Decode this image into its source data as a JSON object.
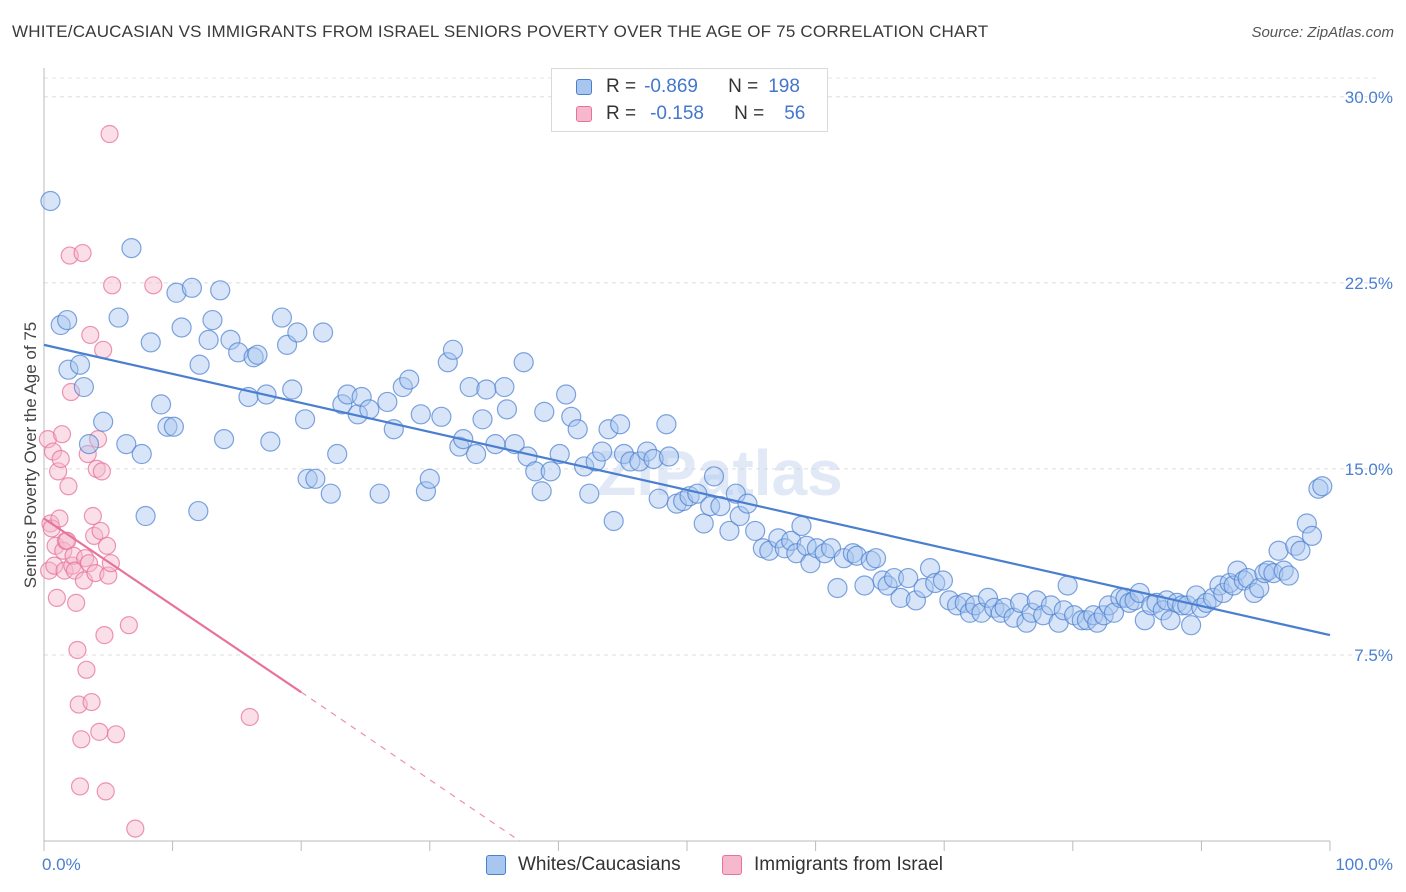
{
  "title": "WHITE/CAUCASIAN VS IMMIGRANTS FROM ISRAEL SENIORS POVERTY OVER THE AGE OF 75 CORRELATION CHART",
  "source": "Source: ZipAtlas.com",
  "watermark": "ZIPatlas",
  "legend": {
    "rows": [
      {
        "r_label": "R =",
        "r_value": "-0.869",
        "n_label": "N =",
        "n_value": "198"
      },
      {
        "r_label": "R =",
        "r_value": "-0.158",
        "n_label": "N =",
        "n_value": "56"
      }
    ]
  },
  "colors": {
    "blue": "#4a7fd0",
    "blue_fill": "#a9c6ef",
    "pink": "#e8729b",
    "pink_fill": "#f5b8cc"
  },
  "chart_data": {
    "type": "scatter",
    "ylabel": "Seniors Poverty Over the Age of 75",
    "xlabel": "",
    "x_tick_labels": [
      "0.0%",
      "100.0%"
    ],
    "y_tick_labels": [
      "7.5%",
      "15.0%",
      "22.5%",
      "30.0%"
    ],
    "xlim": [
      0,
      100
    ],
    "ylim": [
      0,
      31
    ],
    "y_ticks": [
      7.5,
      15.0,
      22.5,
      30.0
    ],
    "grid": "horizontal dashed",
    "legend_position": "top-center",
    "series": [
      {
        "name": "Whites/Caucasians",
        "color": "#4a7fd0",
        "trend": {
          "x": [
            0,
            100
          ],
          "y": [
            20.0,
            8.3
          ]
        },
        "points": [
          [
            0.5,
            25.8
          ],
          [
            1.3,
            20.8
          ],
          [
            1.8,
            21.0
          ],
          [
            1.9,
            19.0
          ],
          [
            2.8,
            19.2
          ],
          [
            3.1,
            18.3
          ],
          [
            3.5,
            16.0
          ],
          [
            4.6,
            16.9
          ],
          [
            5.8,
            21.1
          ],
          [
            6.4,
            16.0
          ],
          [
            6.8,
            23.9
          ],
          [
            7.6,
            15.6
          ],
          [
            7.9,
            13.1
          ],
          [
            8.3,
            20.1
          ],
          [
            9.1,
            17.6
          ],
          [
            9.6,
            16.7
          ],
          [
            10.1,
            16.7
          ],
          [
            10.3,
            22.1
          ],
          [
            10.7,
            20.7
          ],
          [
            11.5,
            22.3
          ],
          [
            12.0,
            13.3
          ],
          [
            12.1,
            19.2
          ],
          [
            12.8,
            20.2
          ],
          [
            13.1,
            21.0
          ],
          [
            13.7,
            22.2
          ],
          [
            14.0,
            16.2
          ],
          [
            14.5,
            20.2
          ],
          [
            15.1,
            19.7
          ],
          [
            15.9,
            17.9
          ],
          [
            16.3,
            19.5
          ],
          [
            16.6,
            19.6
          ],
          [
            17.3,
            18.0
          ],
          [
            17.6,
            16.1
          ],
          [
            18.5,
            21.1
          ],
          [
            18.9,
            20.0
          ],
          [
            19.3,
            18.2
          ],
          [
            19.7,
            20.5
          ],
          [
            20.3,
            17.0
          ],
          [
            20.5,
            14.6
          ],
          [
            21.1,
            14.6
          ],
          [
            21.7,
            20.5
          ],
          [
            22.3,
            14.0
          ],
          [
            22.8,
            15.6
          ],
          [
            23.2,
            17.6
          ],
          [
            23.6,
            18.0
          ],
          [
            24.4,
            17.2
          ],
          [
            24.7,
            17.9
          ],
          [
            25.3,
            17.4
          ],
          [
            26.1,
            14.0
          ],
          [
            26.7,
            17.7
          ],
          [
            27.2,
            16.6
          ],
          [
            27.9,
            18.3
          ],
          [
            28.4,
            18.6
          ],
          [
            29.3,
            17.2
          ],
          [
            29.7,
            14.1
          ],
          [
            30.0,
            14.6
          ],
          [
            30.9,
            17.1
          ],
          [
            31.4,
            19.3
          ],
          [
            31.8,
            19.8
          ],
          [
            32.3,
            15.9
          ],
          [
            32.6,
            16.2
          ],
          [
            33.1,
            18.3
          ],
          [
            33.6,
            15.6
          ],
          [
            34.1,
            17.0
          ],
          [
            34.4,
            18.2
          ],
          [
            35.1,
            16.0
          ],
          [
            35.8,
            18.3
          ],
          [
            36.0,
            17.4
          ],
          [
            36.6,
            16.0
          ],
          [
            37.3,
            19.3
          ],
          [
            37.6,
            15.5
          ],
          [
            38.2,
            14.9
          ],
          [
            38.7,
            14.1
          ],
          [
            38.9,
            17.3
          ],
          [
            39.4,
            14.9
          ],
          [
            40.1,
            15.6
          ],
          [
            40.6,
            18.0
          ],
          [
            41.0,
            17.1
          ],
          [
            41.5,
            16.6
          ],
          [
            42.0,
            15.1
          ],
          [
            42.4,
            14.0
          ],
          [
            42.9,
            15.3
          ],
          [
            43.4,
            15.7
          ],
          [
            43.9,
            16.6
          ],
          [
            44.3,
            12.9
          ],
          [
            44.8,
            16.8
          ],
          [
            45.1,
            15.6
          ],
          [
            45.6,
            15.3
          ],
          [
            46.3,
            15.3
          ],
          [
            46.9,
            15.7
          ],
          [
            47.4,
            15.4
          ],
          [
            47.8,
            13.8
          ],
          [
            48.4,
            16.8
          ],
          [
            48.6,
            15.5
          ],
          [
            49.2,
            13.6
          ],
          [
            49.7,
            13.7
          ],
          [
            50.2,
            13.9
          ],
          [
            50.8,
            14.0
          ],
          [
            51.3,
            12.8
          ],
          [
            51.8,
            13.5
          ],
          [
            52.1,
            14.7
          ],
          [
            52.6,
            13.5
          ],
          [
            53.3,
            12.5
          ],
          [
            53.8,
            14.0
          ],
          [
            54.1,
            13.1
          ],
          [
            54.7,
            13.6
          ],
          [
            55.3,
            12.5
          ],
          [
            55.9,
            11.8
          ],
          [
            56.4,
            11.7
          ],
          [
            57.1,
            12.2
          ],
          [
            57.6,
            11.8
          ],
          [
            58.1,
            12.1
          ],
          [
            58.5,
            11.6
          ],
          [
            58.9,
            12.7
          ],
          [
            59.3,
            11.9
          ],
          [
            59.6,
            11.2
          ],
          [
            60.1,
            11.8
          ],
          [
            60.7,
            11.6
          ],
          [
            61.2,
            11.8
          ],
          [
            61.7,
            10.2
          ],
          [
            62.2,
            11.4
          ],
          [
            62.9,
            11.6
          ],
          [
            63.2,
            11.5
          ],
          [
            63.8,
            10.3
          ],
          [
            64.3,
            11.3
          ],
          [
            64.7,
            11.4
          ],
          [
            65.2,
            10.5
          ],
          [
            65.6,
            10.3
          ],
          [
            66.1,
            10.6
          ],
          [
            66.6,
            9.8
          ],
          [
            67.2,
            10.6
          ],
          [
            67.8,
            9.7
          ],
          [
            68.4,
            10.2
          ],
          [
            68.9,
            11.0
          ],
          [
            69.3,
            10.4
          ],
          [
            69.9,
            10.5
          ],
          [
            70.4,
            9.7
          ],
          [
            71.0,
            9.5
          ],
          [
            71.6,
            9.6
          ],
          [
            72.0,
            9.2
          ],
          [
            72.4,
            9.5
          ],
          [
            72.9,
            9.2
          ],
          [
            73.4,
            9.8
          ],
          [
            73.9,
            9.4
          ],
          [
            74.4,
            9.2
          ],
          [
            74.7,
            9.4
          ],
          [
            75.4,
            9.0
          ],
          [
            75.9,
            9.6
          ],
          [
            76.4,
            8.8
          ],
          [
            76.8,
            9.2
          ],
          [
            77.2,
            9.7
          ],
          [
            77.7,
            9.1
          ],
          [
            78.3,
            9.5
          ],
          [
            78.9,
            8.8
          ],
          [
            79.3,
            9.3
          ],
          [
            79.6,
            10.3
          ],
          [
            80.1,
            9.1
          ],
          [
            80.7,
            8.9
          ],
          [
            81.1,
            8.9
          ],
          [
            81.6,
            9.1
          ],
          [
            81.9,
            8.8
          ],
          [
            82.4,
            9.1
          ],
          [
            82.8,
            9.5
          ],
          [
            83.2,
            9.2
          ],
          [
            83.7,
            9.8
          ],
          [
            84.1,
            9.8
          ],
          [
            84.4,
            9.6
          ],
          [
            84.8,
            9.7
          ],
          [
            85.2,
            10.0
          ],
          [
            85.6,
            8.9
          ],
          [
            86.1,
            9.5
          ],
          [
            86.5,
            9.6
          ],
          [
            87.0,
            9.3
          ],
          [
            87.3,
            9.7
          ],
          [
            87.6,
            8.9
          ],
          [
            88.1,
            9.6
          ],
          [
            88.5,
            9.5
          ],
          [
            88.9,
            9.5
          ],
          [
            89.2,
            8.7
          ],
          [
            89.6,
            9.9
          ],
          [
            90.0,
            9.4
          ],
          [
            90.4,
            9.6
          ],
          [
            90.9,
            9.8
          ],
          [
            91.4,
            10.3
          ],
          [
            91.7,
            10.0
          ],
          [
            92.2,
            10.4
          ],
          [
            92.5,
            10.3
          ],
          [
            92.8,
            10.9
          ],
          [
            93.3,
            10.5
          ],
          [
            93.6,
            10.6
          ],
          [
            94.1,
            10.0
          ],
          [
            94.5,
            10.2
          ],
          [
            94.9,
            10.8
          ],
          [
            95.2,
            10.9
          ],
          [
            95.6,
            10.8
          ],
          [
            96.0,
            11.7
          ],
          [
            96.4,
            10.9
          ],
          [
            96.8,
            10.7
          ],
          [
            97.3,
            11.9
          ],
          [
            97.7,
            11.7
          ],
          [
            98.2,
            12.8
          ],
          [
            98.6,
            12.3
          ],
          [
            99.1,
            14.2
          ],
          [
            99.4,
            14.3
          ]
        ]
      },
      {
        "name": "Immigrants from Israel",
        "color": "#e8729b",
        "trend": {
          "x": [
            0,
            20
          ],
          "y": [
            13.0,
            6.0
          ]
        },
        "trend_extension": {
          "x": [
            20,
            37
          ],
          "y": [
            6.0,
            0.0
          ]
        },
        "points": [
          [
            0.3,
            16.2
          ],
          [
            0.4,
            10.9
          ],
          [
            0.5,
            12.8
          ],
          [
            0.6,
            12.6
          ],
          [
            0.7,
            15.7
          ],
          [
            0.8,
            11.1
          ],
          [
            0.9,
            11.9
          ],
          [
            1.0,
            9.8
          ],
          [
            1.1,
            14.9
          ],
          [
            1.2,
            13.0
          ],
          [
            1.3,
            15.4
          ],
          [
            1.4,
            16.4
          ],
          [
            1.5,
            11.7
          ],
          [
            1.6,
            10.9
          ],
          [
            1.7,
            12.1
          ],
          [
            1.8,
            12.1
          ],
          [
            1.9,
            14.3
          ],
          [
            2.0,
            23.6
          ],
          [
            2.1,
            18.1
          ],
          [
            2.2,
            11.1
          ],
          [
            2.3,
            11.5
          ],
          [
            2.4,
            10.9
          ],
          [
            2.5,
            9.6
          ],
          [
            2.6,
            7.7
          ],
          [
            2.7,
            5.5
          ],
          [
            2.8,
            2.2
          ],
          [
            2.9,
            4.1
          ],
          [
            3.0,
            23.7
          ],
          [
            3.1,
            10.5
          ],
          [
            3.2,
            11.4
          ],
          [
            3.3,
            6.9
          ],
          [
            3.4,
            15.6
          ],
          [
            3.5,
            11.2
          ],
          [
            3.6,
            20.4
          ],
          [
            3.7,
            5.6
          ],
          [
            3.8,
            13.1
          ],
          [
            3.9,
            12.3
          ],
          [
            4.0,
            10.8
          ],
          [
            4.1,
            15.0
          ],
          [
            4.2,
            16.2
          ],
          [
            4.3,
            4.4
          ],
          [
            4.4,
            12.5
          ],
          [
            4.5,
            14.9
          ],
          [
            4.6,
            19.8
          ],
          [
            4.7,
            8.3
          ],
          [
            4.8,
            2.0
          ],
          [
            4.9,
            11.9
          ],
          [
            5.0,
            10.7
          ],
          [
            5.1,
            28.5
          ],
          [
            5.2,
            11.2
          ],
          [
            5.3,
            22.4
          ],
          [
            5.6,
            4.3
          ],
          [
            6.6,
            8.7
          ],
          [
            7.1,
            0.5
          ],
          [
            8.5,
            22.4
          ],
          [
            16.0,
            5.0
          ]
        ]
      }
    ]
  },
  "bottom_legend": {
    "items": [
      "Whites/Caucasians",
      "Immigrants from Israel"
    ]
  }
}
